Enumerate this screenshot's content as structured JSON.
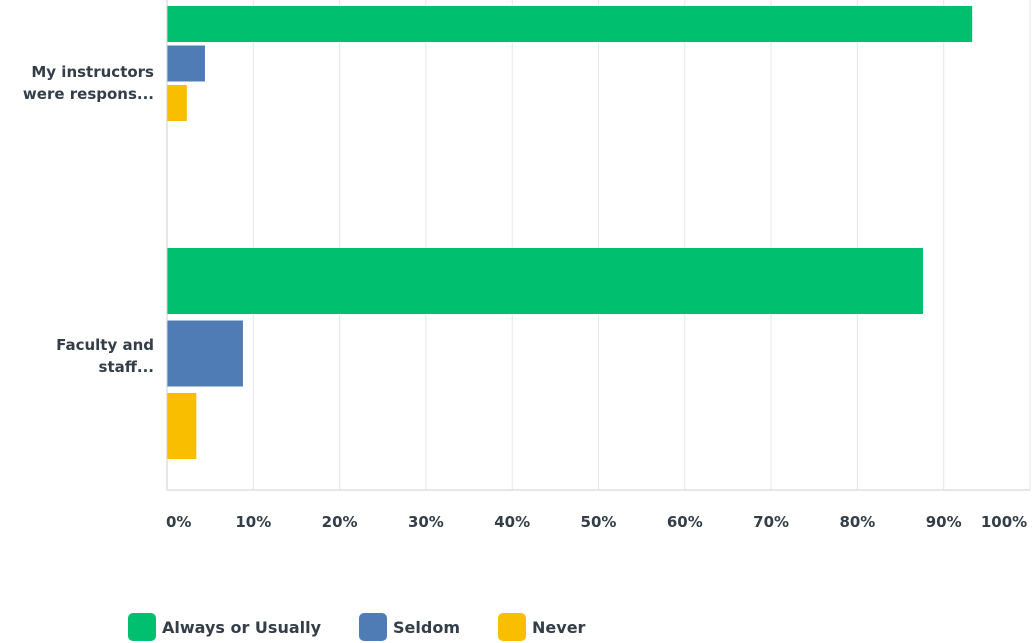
{
  "chart_data": {
    "type": "bar",
    "orientation": "horizontal",
    "categories": [
      [
        "My instructors",
        "were respons..."
      ],
      [
        "Faculty and",
        "staff..."
      ]
    ],
    "series": [
      {
        "name": "Always or Usually",
        "color": "#00bf6f",
        "values": [
          93.3,
          87.6
        ]
      },
      {
        "name": "Seldom",
        "color": "#507cb6",
        "values": [
          4.4,
          8.8
        ]
      },
      {
        "name": "Never",
        "color": "#f9be00",
        "values": [
          2.3,
          3.4
        ]
      }
    ],
    "xlim": [
      0,
      100
    ],
    "xticks": [
      "0%",
      "10%",
      "20%",
      "30%",
      "40%",
      "50%",
      "60%",
      "70%",
      "80%",
      "90%",
      "100%"
    ],
    "grid": true,
    "legend_position": "bottom"
  }
}
